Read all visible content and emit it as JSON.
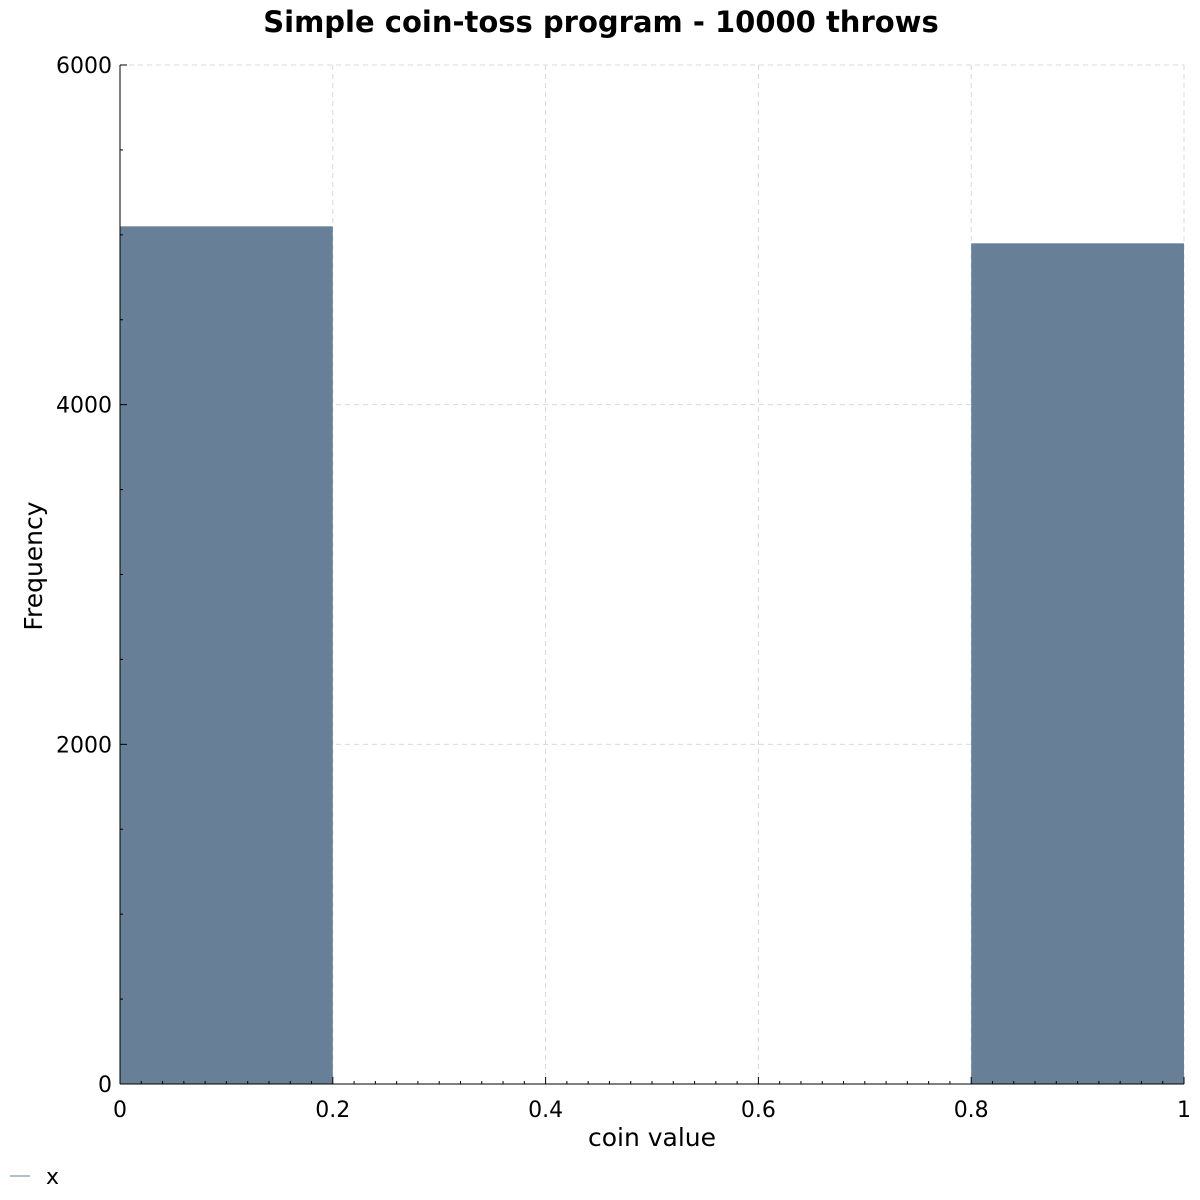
{
  "chart_data": {
    "type": "bar",
    "title": "Simple coin-toss program - 10000 throws",
    "xlabel": "coin value",
    "ylabel": "Frequency",
    "xlim": [
      0,
      1
    ],
    "ylim": [
      0,
      6000
    ],
    "bins": [
      {
        "x0": 0.0,
        "x1": 0.2,
        "value": 5050
      },
      {
        "x0": 0.2,
        "x1": 0.4,
        "value": 0
      },
      {
        "x0": 0.4,
        "x1": 0.6,
        "value": 0
      },
      {
        "x0": 0.6,
        "x1": 0.8,
        "value": 0
      },
      {
        "x0": 0.8,
        "x1": 1.0,
        "value": 4950
      }
    ],
    "xticks": [
      0,
      0.2,
      0.4,
      0.6,
      0.8,
      1
    ],
    "xtick_labels": [
      "0",
      "0.2",
      "0.4",
      "0.6",
      "0.8",
      "1"
    ],
    "yticks": [
      0,
      2000,
      4000,
      6000
    ],
    "ytick_labels": [
      "0",
      "2000",
      "4000",
      "6000"
    ],
    "grid": true,
    "bar_color": "#677f97",
    "legend": {
      "entries": [
        "x"
      ],
      "placement": "bottom-left"
    }
  }
}
